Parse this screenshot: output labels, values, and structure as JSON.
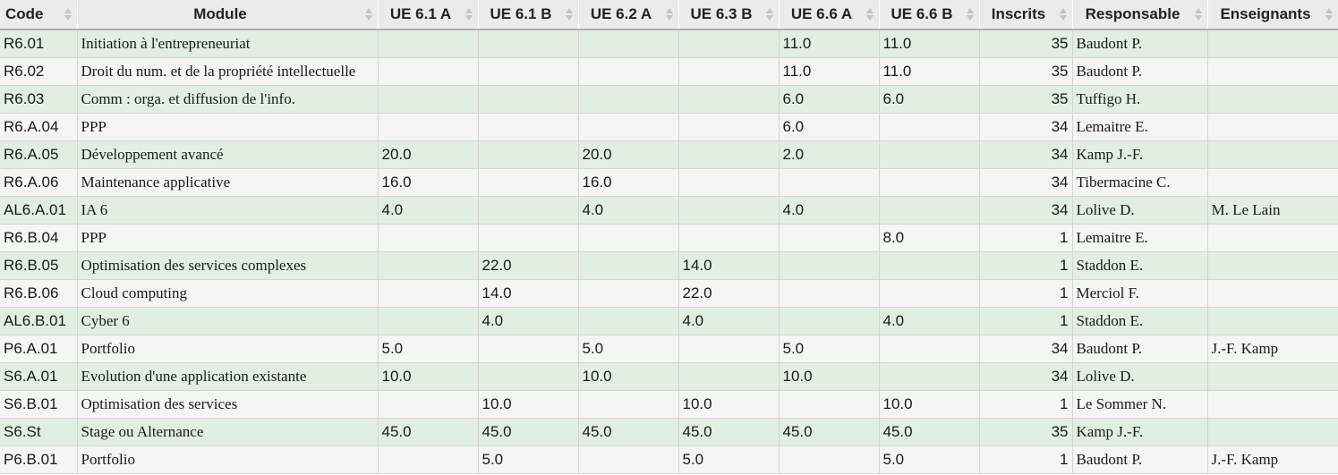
{
  "columns": [
    {
      "key": "code",
      "label": "Code"
    },
    {
      "key": "module",
      "label": "Module"
    },
    {
      "key": "ue61a",
      "label": "UE 6.1 A"
    },
    {
      "key": "ue61b",
      "label": "UE 6.1 B"
    },
    {
      "key": "ue62a",
      "label": "UE 6.2 A"
    },
    {
      "key": "ue63b",
      "label": "UE 6.3 B"
    },
    {
      "key": "ue66a",
      "label": "UE 6.6 A"
    },
    {
      "key": "ue66b",
      "label": "UE 6.6 B"
    },
    {
      "key": "inscrits",
      "label": "Inscrits"
    },
    {
      "key": "responsable",
      "label": "Responsable"
    },
    {
      "key": "enseignants",
      "label": "Enseignants"
    }
  ],
  "rows": [
    {
      "code": "R6.01",
      "module": "Initiation à l'entrepreneuriat",
      "ue61a": "",
      "ue61b": "",
      "ue62a": "",
      "ue63b": "",
      "ue66a": "11.0",
      "ue66b": "11.0",
      "inscrits": "35",
      "responsable": "Baudont P.",
      "enseignants": ""
    },
    {
      "code": "R6.02",
      "module": "Droit du num. et de la propriété intellectuelle",
      "ue61a": "",
      "ue61b": "",
      "ue62a": "",
      "ue63b": "",
      "ue66a": "11.0",
      "ue66b": "11.0",
      "inscrits": "35",
      "responsable": "Baudont P.",
      "enseignants": ""
    },
    {
      "code": "R6.03",
      "module": "Comm : orga. et diffusion de l'info.",
      "ue61a": "",
      "ue61b": "",
      "ue62a": "",
      "ue63b": "",
      "ue66a": "6.0",
      "ue66b": "6.0",
      "inscrits": "35",
      "responsable": "Tuffigo H.",
      "enseignants": ""
    },
    {
      "code": "R6.A.04",
      "module": "PPP",
      "ue61a": "",
      "ue61b": "",
      "ue62a": "",
      "ue63b": "",
      "ue66a": "6.0",
      "ue66b": "",
      "inscrits": "34",
      "responsable": "Lemaitre E.",
      "enseignants": ""
    },
    {
      "code": "R6.A.05",
      "module": "Développement avancé",
      "ue61a": "20.0",
      "ue61b": "",
      "ue62a": "20.0",
      "ue63b": "",
      "ue66a": "2.0",
      "ue66b": "",
      "inscrits": "34",
      "responsable": "Kamp J.-F.",
      "enseignants": ""
    },
    {
      "code": "R6.A.06",
      "module": "Maintenance applicative",
      "ue61a": "16.0",
      "ue61b": "",
      "ue62a": "16.0",
      "ue63b": "",
      "ue66a": "",
      "ue66b": "",
      "inscrits": "34",
      "responsable": "Tibermacine C.",
      "enseignants": ""
    },
    {
      "code": "AL6.A.01",
      "module": "IA 6",
      "ue61a": "4.0",
      "ue61b": "",
      "ue62a": "4.0",
      "ue63b": "",
      "ue66a": "4.0",
      "ue66b": "",
      "inscrits": "34",
      "responsable": "Lolive D.",
      "enseignants": "M. Le Lain"
    },
    {
      "code": "R6.B.04",
      "module": "PPP",
      "ue61a": "",
      "ue61b": "",
      "ue62a": "",
      "ue63b": "",
      "ue66a": "",
      "ue66b": "8.0",
      "inscrits": "1",
      "responsable": "Lemaitre E.",
      "enseignants": ""
    },
    {
      "code": "R6.B.05",
      "module": "Optimisation des services complexes",
      "ue61a": "",
      "ue61b": "22.0",
      "ue62a": "",
      "ue63b": "14.0",
      "ue66a": "",
      "ue66b": "",
      "inscrits": "1",
      "responsable": "Staddon E.",
      "enseignants": ""
    },
    {
      "code": "R6.B.06",
      "module": "Cloud computing",
      "ue61a": "",
      "ue61b": "14.0",
      "ue62a": "",
      "ue63b": "22.0",
      "ue66a": "",
      "ue66b": "",
      "inscrits": "1",
      "responsable": "Merciol F.",
      "enseignants": ""
    },
    {
      "code": "AL6.B.01",
      "module": "Cyber 6",
      "ue61a": "",
      "ue61b": "4.0",
      "ue62a": "",
      "ue63b": "4.0",
      "ue66a": "",
      "ue66b": "4.0",
      "inscrits": "1",
      "responsable": "Staddon E.",
      "enseignants": ""
    },
    {
      "code": "P6.A.01",
      "module": "Portfolio",
      "ue61a": "5.0",
      "ue61b": "",
      "ue62a": "5.0",
      "ue63b": "",
      "ue66a": "5.0",
      "ue66b": "",
      "inscrits": "34",
      "responsable": "Baudont P.",
      "enseignants": "J.-F. Kamp"
    },
    {
      "code": "S6.A.01",
      "module": "Evolution d'une application existante",
      "ue61a": "10.0",
      "ue61b": "",
      "ue62a": "10.0",
      "ue63b": "",
      "ue66a": "10.0",
      "ue66b": "",
      "inscrits": "34",
      "responsable": "Lolive D.",
      "enseignants": ""
    },
    {
      "code": "S6.B.01",
      "module": "Optimisation des services",
      "ue61a": "",
      "ue61b": "10.0",
      "ue62a": "",
      "ue63b": "10.0",
      "ue66a": "",
      "ue66b": "10.0",
      "inscrits": "1",
      "responsable": "Le Sommer N.",
      "enseignants": ""
    },
    {
      "code": "S6.St",
      "module": "Stage ou Alternance",
      "ue61a": "45.0",
      "ue61b": "45.0",
      "ue62a": "45.0",
      "ue63b": "45.0",
      "ue66a": "45.0",
      "ue66b": "45.0",
      "inscrits": "35",
      "responsable": "Kamp J.-F.",
      "enseignants": ""
    },
    {
      "code": "P6.B.01",
      "module": "Portfolio",
      "ue61a": "",
      "ue61b": "5.0",
      "ue62a": "",
      "ue63b": "5.0",
      "ue66a": "",
      "ue66b": "5.0",
      "inscrits": "1",
      "responsable": "Baudont P.",
      "enseignants": "J.-F. Kamp"
    }
  ],
  "colors": {
    "header_bg": "#ebebeb",
    "row_odd_bg": "#e3eee3",
    "row_even_bg": "#f5f5f5",
    "sort_icon": "#c4c4c4"
  }
}
